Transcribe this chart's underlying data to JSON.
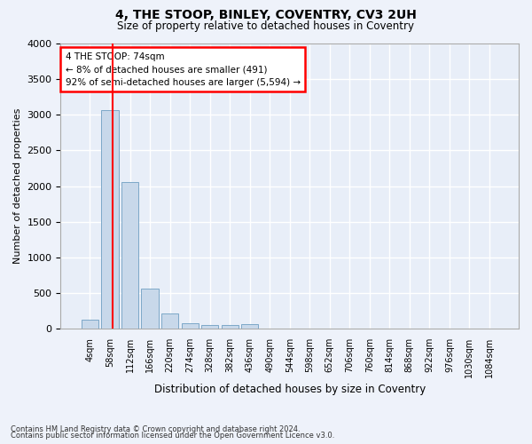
{
  "title": "4, THE STOOP, BINLEY, COVENTRY, CV3 2UH",
  "subtitle": "Size of property relative to detached houses in Coventry",
  "xlabel": "Distribution of detached houses by size in Coventry",
  "ylabel": "Number of detached properties",
  "bar_color": "#c8d8ea",
  "bar_edge_color": "#7da8c8",
  "background_color": "#e8eef8",
  "grid_color": "#ffffff",
  "fig_background": "#eef2fa",
  "categories": [
    "4sqm",
    "58sqm",
    "112sqm",
    "166sqm",
    "220sqm",
    "274sqm",
    "328sqm",
    "382sqm",
    "436sqm",
    "490sqm",
    "544sqm",
    "598sqm",
    "652sqm",
    "706sqm",
    "760sqm",
    "814sqm",
    "868sqm",
    "922sqm",
    "976sqm",
    "1030sqm",
    "1084sqm"
  ],
  "values": [
    130,
    3060,
    2060,
    560,
    215,
    75,
    55,
    45,
    60,
    0,
    0,
    0,
    0,
    0,
    0,
    0,
    0,
    0,
    0,
    0,
    0
  ],
  "red_line_x": 1.0,
  "annotation_text": "4 THE STOOP: 74sqm\n← 8% of detached houses are smaller (491)\n92% of semi-detached houses are larger (5,594) →",
  "ylim": [
    0,
    4000
  ],
  "yticks": [
    0,
    500,
    1000,
    1500,
    2000,
    2500,
    3000,
    3500,
    4000
  ],
  "footer1": "Contains HM Land Registry data © Crown copyright and database right 2024.",
  "footer2": "Contains public sector information licensed under the Open Government Licence v3.0."
}
